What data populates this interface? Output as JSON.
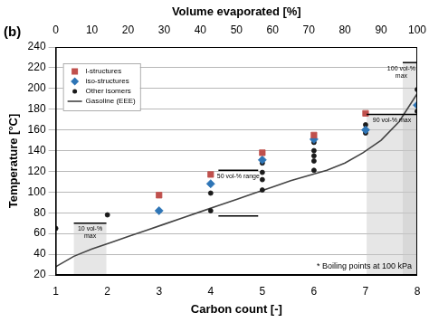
{
  "chart_data": {
    "type": "scatter",
    "title": "(b)",
    "xlabel": "Carbon count [-]",
    "ylabel": "Temperature [°C]",
    "x2label": "Volume evaporated [%]",
    "xlim": [
      1,
      8
    ],
    "xticks": [
      1,
      2,
      3,
      4,
      5,
      6,
      7,
      8
    ],
    "x2lim": [
      0,
      100
    ],
    "x2ticks": [
      0,
      10,
      20,
      30,
      40,
      50,
      60,
      70,
      80,
      90,
      100
    ],
    "ylim": [
      20,
      240
    ],
    "yticks": [
      20,
      40,
      60,
      80,
      100,
      120,
      140,
      160,
      180,
      200,
      220,
      240
    ],
    "grid": true,
    "legend": "upper left",
    "note": "* Boiling points at 100 kPa",
    "series": [
      {
        "name": "l-structures",
        "color": "#c0504d",
        "marker": "square",
        "x": [
          3,
          4,
          5,
          6,
          7
        ],
        "values": [
          97,
          117,
          138,
          155,
          176
        ]
      },
      {
        "name": "iso-structures",
        "color": "#2e75b6",
        "marker": "diamond",
        "x": [
          3,
          4,
          5,
          6,
          7,
          8
        ],
        "values": [
          82,
          108,
          131,
          151,
          160,
          184
        ]
      },
      {
        "name": "Other isomers",
        "color": "#1a1a1a",
        "marker": "circle",
        "x": [
          1,
          2,
          4,
          4,
          5,
          5,
          5,
          5,
          6,
          6,
          6,
          6,
          6,
          7,
          7,
          8,
          8
        ],
        "values": [
          65,
          78,
          99,
          82,
          102,
          112,
          119,
          128,
          121,
          130,
          135,
          140,
          148,
          157,
          165,
          178,
          199
        ]
      },
      {
        "name": "Gasoline (EEE)",
        "color": "#444444",
        "type": "line",
        "line_style": "solid",
        "axis": "x2",
        "x": [
          0,
          5,
          10,
          15,
          20,
          25,
          30,
          35,
          40,
          45,
          50,
          55,
          60,
          65,
          70,
          75,
          80,
          85,
          90,
          95,
          100
        ],
        "values": [
          28,
          38,
          45,
          51,
          57,
          63,
          69,
          75,
          81,
          87,
          93,
          99,
          105,
          111,
          116,
          121,
          128,
          138,
          150,
          168,
          195
        ]
      }
    ],
    "limits": [
      {
        "text": "10 vol-% max",
        "x": [
          5,
          14
        ],
        "y": 70
      },
      {
        "text": "50 vol-% range",
        "x": [
          45,
          56
        ],
        "y": [
          77,
          121
        ]
      },
      {
        "text": "90 vol-% max",
        "x": [
          86,
          100
        ],
        "y": 175
      },
      {
        "text": "100 vol-% max",
        "x": [
          96,
          100
        ],
        "y": 225
      }
    ]
  }
}
